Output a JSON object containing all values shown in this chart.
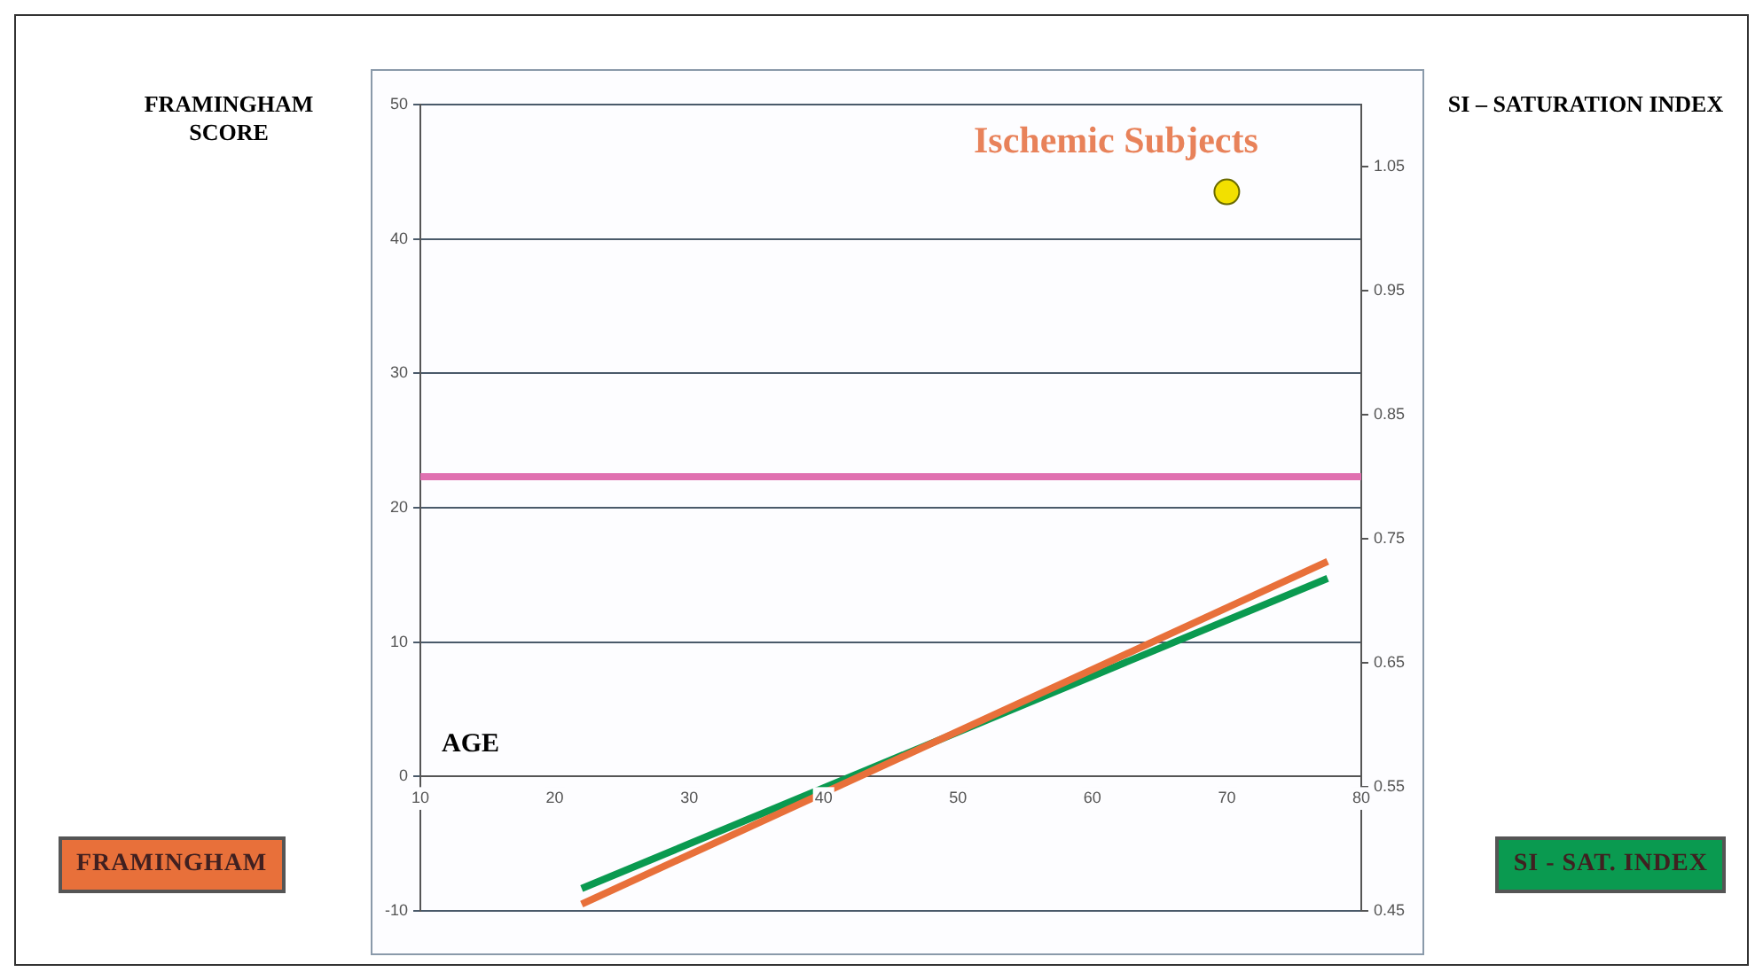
{
  "chart_data": {
    "type": "line",
    "xlabel": "AGE",
    "ylabel": "FRAMINGHAM SCORE",
    "y2label": "SI – SATURATION INDEX",
    "annotations": [
      "Ischemic Subjects"
    ],
    "xlim": [
      10,
      80
    ],
    "xticks": [
      10,
      20,
      30,
      40,
      50,
      60,
      70,
      80
    ],
    "ylim": [
      -10,
      50
    ],
    "yticks": [
      -10,
      0,
      10,
      20,
      30,
      40,
      50
    ],
    "y2lim": [
      0.45,
      1.1
    ],
    "y2ticks": [
      0.45,
      0.55,
      0.65,
      0.75,
      0.85,
      0.95,
      1.05
    ],
    "series": [
      {
        "name": "FRAMINGHAM",
        "type": "line",
        "color": "#e8703a",
        "x": [
          22,
          77.5
        ],
        "values": [
          -9.5,
          16
        ]
      },
      {
        "name": "SI - SAT. INDEX",
        "type": "line",
        "axis": "y2",
        "color": "#0a9a50",
        "x": [
          22,
          77.5
        ],
        "values": [
          0.468,
          0.718
        ]
      },
      {
        "type": "scatter",
        "color": "#f2e000",
        "x": [
          70
        ],
        "values": [
          43.5
        ]
      }
    ],
    "ref_lines": [
      {
        "axis": "y2",
        "value": 0.8,
        "color": "#e070b0"
      }
    ],
    "grid": "y",
    "legend": "bottom",
    "line_style": "solid"
  }
}
